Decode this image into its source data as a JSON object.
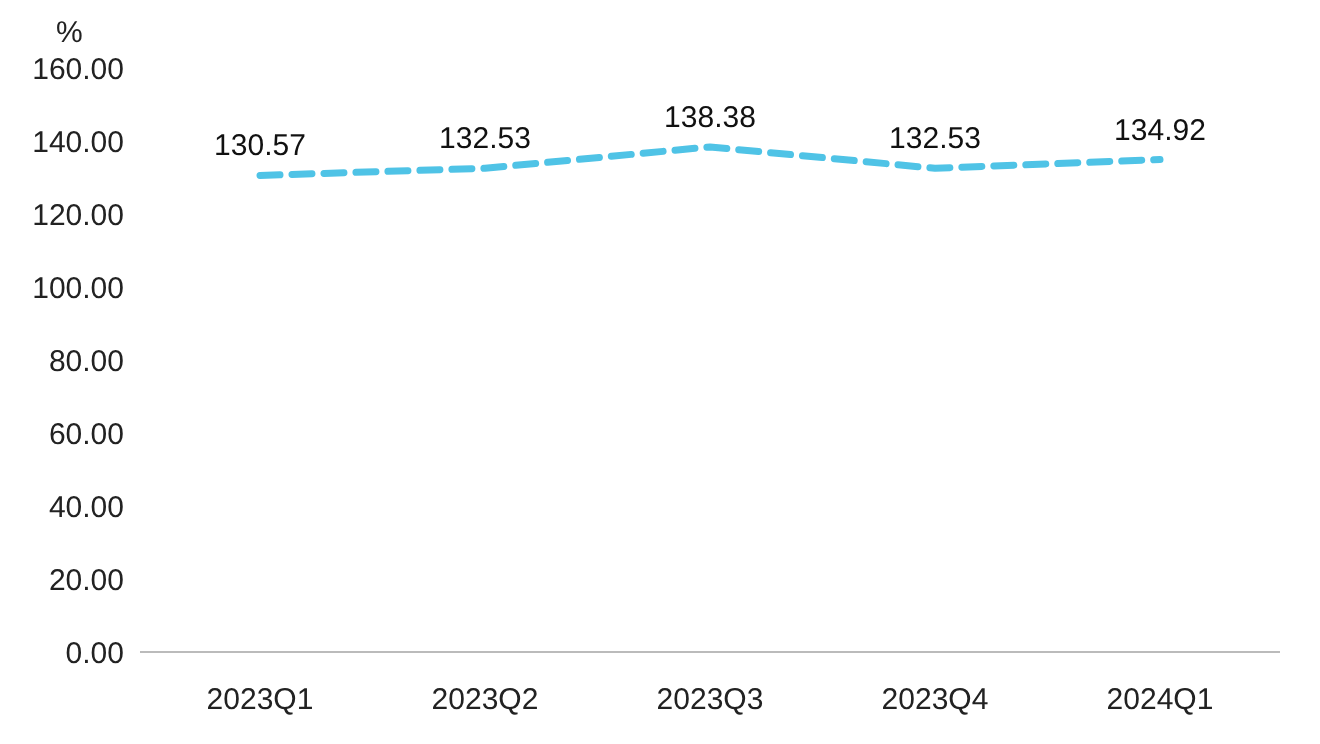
{
  "chart_data": {
    "type": "line",
    "ylabel": "%",
    "categories": [
      "2023Q1",
      "2023Q2",
      "2023Q3",
      "2023Q4",
      "2024Q1"
    ],
    "series": [
      {
        "color": "#4fc3e6",
        "values": [
          130.57,
          132.53,
          138.38,
          132.53,
          134.92
        ]
      }
    ],
    "ylim": [
      0,
      160
    ],
    "yticks": [
      {
        "value": 0,
        "label": "0.00"
      },
      {
        "value": 20,
        "label": "20.00"
      },
      {
        "value": 40,
        "label": "40.00"
      },
      {
        "value": 60,
        "label": "60.00"
      },
      {
        "value": 80,
        "label": "80.00"
      },
      {
        "value": 100,
        "label": "100.00"
      },
      {
        "value": 120,
        "label": "120.00"
      },
      {
        "value": 140,
        "label": "140.00"
      },
      {
        "value": 160,
        "label": "160.00"
      }
    ],
    "grid": false,
    "legend": false,
    "marker": "none",
    "line_style": "dashed",
    "data_labels": true
  }
}
